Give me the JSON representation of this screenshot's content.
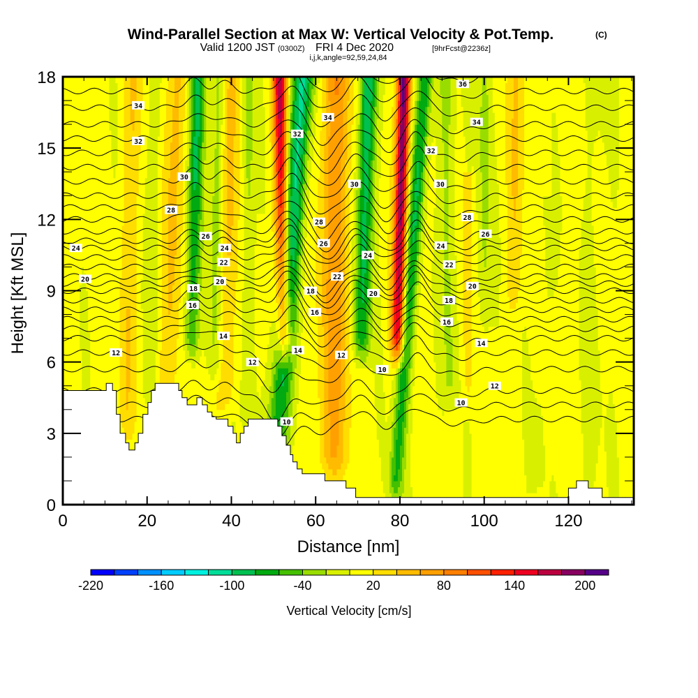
{
  "chart_data": {
    "type": "heatmap",
    "title": "Wind-Parallel Section at Max W: Vertical Velocity & Pot.Temp.",
    "title_mark": "(C)",
    "subtitle_main": "Valid 1200 JST",
    "subtitle_utc": "(0300Z)",
    "subtitle_date": "FRI 4 Dec 2020",
    "subtitle_fcst": "[9hrFcst@2236z]",
    "subtitle_index": "i,j,k,angle=92,59,24,84",
    "xlabel": "Distance [nm]",
    "ylabel": "Height [Kft MSL]",
    "xlim": [
      0,
      135.5
    ],
    "ylim": [
      0,
      18
    ],
    "x_ticks": [
      0,
      20,
      40,
      60,
      80,
      100,
      120
    ],
    "x_tick_labels": [
      "0",
      "20",
      "40",
      "60",
      "80",
      "100",
      "120"
    ],
    "x_minor_step": 5,
    "y_ticks": [
      0,
      3,
      6,
      9,
      12,
      15,
      18
    ],
    "y_tick_labels": [
      "0",
      "3",
      "6",
      "9",
      "12",
      "15",
      "18"
    ],
    "y_minor_step": 1,
    "colorbar": {
      "label": "Vertical Velocity [cm/s]",
      "boundaries": [
        -220,
        -200,
        -180,
        -160,
        -140,
        -120,
        -100,
        -80,
        -60,
        -40,
        -20,
        0,
        20,
        40,
        60,
        80,
        100,
        120,
        140,
        160,
        180,
        200,
        220
      ],
      "colors": [
        "#0000ff",
        "#0040ff",
        "#0090ff",
        "#00ccff",
        "#00f0e0",
        "#00dd99",
        "#00c050",
        "#00aa10",
        "#44c000",
        "#99dd00",
        "#d8f000",
        "#ffff00",
        "#ffdd00",
        "#ffbb00",
        "#ffa000",
        "#ff8000",
        "#ff5000",
        "#ff2000",
        "#ee0020",
        "#bb0040",
        "#880060",
        "#550088"
      ],
      "tick_values": [
        -220,
        -160,
        -100,
        -40,
        20,
        80,
        140,
        200
      ],
      "tick_labels": [
        "-220",
        "-160",
        "-100",
        "-40",
        "20",
        "80",
        "140",
        "200"
      ]
    },
    "velocity_features": [
      {
        "name": "updraft-1",
        "x_top": 17,
        "x_bottom": 15,
        "z_top": 18,
        "z_bottom": 4,
        "width": 2.2,
        "w_cm_s": 30
      },
      {
        "name": "downdraft-1",
        "x_top": 22,
        "x_bottom": 21,
        "z_top": 18,
        "z_bottom": 5,
        "width": 1.6,
        "w_cm_s": -30
      },
      {
        "name": "updraft-2",
        "x_top": 27,
        "x_bottom": 25,
        "z_top": 18,
        "z_bottom": 5,
        "width": 2.2,
        "w_cm_s": 45
      },
      {
        "name": "downdraft-2",
        "x_top": 32,
        "x_bottom": 30.5,
        "z_top": 18,
        "z_bottom": 7,
        "width": 1.8,
        "w_cm_s": -95
      },
      {
        "name": "downdraft-3",
        "x_top": 37,
        "x_bottom": 36,
        "z_top": 18,
        "z_bottom": 6,
        "width": 1.6,
        "w_cm_s": -45
      },
      {
        "name": "updraft-3",
        "x_top": 40,
        "x_bottom": 39,
        "z_top": 18,
        "z_bottom": 5,
        "width": 2.0,
        "w_cm_s": 45
      },
      {
        "name": "downdraft-4",
        "x_top": 44,
        "x_bottom": 44,
        "z_top": 18,
        "z_bottom": 4,
        "width": 1.5,
        "w_cm_s": -40
      },
      {
        "name": "updraft-4",
        "x_top": 51.5,
        "x_bottom": 52.5,
        "z_top": 18,
        "z_bottom": 7,
        "width": 1.6,
        "w_cm_s": 165
      },
      {
        "name": "downdraft-5",
        "x_top": 57,
        "x_bottom": 51,
        "z_top": 18,
        "z_bottom": 3,
        "width": 2.6,
        "w_cm_s": -120
      },
      {
        "name": "updraft-5",
        "x_top": 65,
        "x_bottom": 64,
        "z_top": 18,
        "z_bottom": 2,
        "width": 3.5,
        "w_cm_s": 70
      },
      {
        "name": "downdraft-6",
        "x_top": 72.5,
        "x_bottom": 71,
        "z_top": 18,
        "z_bottom": 7,
        "width": 2.0,
        "w_cm_s": -115
      },
      {
        "name": "updraft-6",
        "x_top": 81,
        "x_bottom": 79.5,
        "z_top": 18,
        "z_bottom": 7,
        "width": 1.5,
        "w_cm_s": 205
      },
      {
        "name": "downdraft-7",
        "x_top": 86,
        "x_bottom": 79,
        "z_top": 18,
        "z_bottom": 1,
        "width": 1.8,
        "w_cm_s": -95
      },
      {
        "name": "downdraft-8",
        "x_top": 91,
        "x_bottom": 92,
        "z_top": 18,
        "z_bottom": 5,
        "width": 2.0,
        "w_cm_s": -40
      },
      {
        "name": "downdraft-9",
        "x_top": 100,
        "x_bottom": 100,
        "z_top": 18,
        "z_bottom": 8,
        "width": 1.6,
        "w_cm_s": -40
      },
      {
        "name": "updraft-7",
        "x_top": 96,
        "x_bottom": 96,
        "z_top": 13,
        "z_bottom": 5,
        "width": 1.3,
        "w_cm_s": 30
      },
      {
        "name": "updraft-8",
        "x_top": 108,
        "x_bottom": 107,
        "z_top": 18,
        "z_bottom": 9,
        "width": 2.0,
        "w_cm_s": 30
      },
      {
        "name": "downdraft-10",
        "x_top": 127,
        "x_bottom": 126,
        "z_top": 18,
        "z_bottom": 1,
        "width": 3.0,
        "w_cm_s": -15
      },
      {
        "name": "downdraft-11",
        "x_top": 115,
        "x_bottom": 113,
        "z_top": 12,
        "z_bottom": 1,
        "width": 2.0,
        "w_cm_s": -15
      }
    ],
    "isentrope_levels_K": [
      8,
      9,
      10,
      11,
      12,
      13,
      14,
      15,
      16,
      17,
      18,
      19,
      20,
      21,
      22,
      23,
      24,
      25,
      26,
      27,
      28,
      29,
      30,
      31,
      32,
      33,
      34,
      35,
      36
    ],
    "isentrope_base_height_kft": [
      3.6,
      4.2,
      4.8,
      5.7,
      6.4,
      7.0,
      7.4,
      7.8,
      8.2,
      8.6,
      9.0,
      9.3,
      9.6,
      10.0,
      10.4,
      10.8,
      11.1,
      11.5,
      12.0,
      12.5,
      13.0,
      13.6,
      14.2,
      14.8,
      15.4,
      16.0,
      16.7,
      17.4,
      18.1
    ],
    "isentrope_displacements": [
      {
        "x": 31,
        "width": 3,
        "dz_kft": 0.45
      },
      {
        "x": 38,
        "width": 3,
        "dz_kft": 0.35
      },
      {
        "x": 54,
        "width": 3.5,
        "dz_kft": 0.9
      },
      {
        "x": 62,
        "width": 4,
        "dz_kft": -0.8
      },
      {
        "x": 70,
        "width": 3,
        "dz_kft": 0.5
      },
      {
        "x": 77,
        "width": 3,
        "dz_kft": -0.5
      },
      {
        "x": 84,
        "width": 3,
        "dz_kft": 0.8
      },
      {
        "x": 94,
        "width": 5,
        "dz_kft": -0.3
      },
      {
        "x": 52,
        "width": 5,
        "dz_kft": -1.6,
        "z_max": 9
      }
    ],
    "contour_labels": [
      {
        "x": 17.9,
        "z": 16.8,
        "text": "34"
      },
      {
        "x": 17.9,
        "z": 15.3,
        "text": "32"
      },
      {
        "x": 28.8,
        "z": 13.8,
        "text": "30"
      },
      {
        "x": 25.7,
        "z": 12.4,
        "text": "28"
      },
      {
        "x": 33.9,
        "z": 11.3,
        "text": "26"
      },
      {
        "x": 3.1,
        "z": 10.8,
        "text": "24"
      },
      {
        "x": 38.4,
        "z": 10.8,
        "text": "24"
      },
      {
        "x": 38.2,
        "z": 10.2,
        "text": "22"
      },
      {
        "x": 5.3,
        "z": 9.5,
        "text": "20"
      },
      {
        "x": 37.3,
        "z": 9.4,
        "text": "20"
      },
      {
        "x": 31.0,
        "z": 9.1,
        "text": "18"
      },
      {
        "x": 30.8,
        "z": 8.4,
        "text": "16"
      },
      {
        "x": 38.1,
        "z": 7.1,
        "text": "14"
      },
      {
        "x": 12.6,
        "z": 6.4,
        "text": "12"
      },
      {
        "x": 45.0,
        "z": 6.0,
        "text": "12"
      },
      {
        "x": 55.8,
        "z": 6.5,
        "text": "14"
      },
      {
        "x": 53.1,
        "z": 3.5,
        "text": "10"
      },
      {
        "x": 55.6,
        "z": 15.6,
        "text": "32"
      },
      {
        "x": 62.9,
        "z": 16.3,
        "text": "34"
      },
      {
        "x": 87.4,
        "z": 14.9,
        "text": "32"
      },
      {
        "x": 98.2,
        "z": 16.1,
        "text": "34"
      },
      {
        "x": 94.9,
        "z": 17.7,
        "text": "36"
      },
      {
        "x": 69.2,
        "z": 13.5,
        "text": "30"
      },
      {
        "x": 89.6,
        "z": 13.5,
        "text": "30"
      },
      {
        "x": 60.8,
        "z": 11.9,
        "text": "28"
      },
      {
        "x": 96.0,
        "z": 12.1,
        "text": "28"
      },
      {
        "x": 61.9,
        "z": 11.0,
        "text": "26"
      },
      {
        "x": 100.3,
        "z": 11.4,
        "text": "26"
      },
      {
        "x": 72.4,
        "z": 10.5,
        "text": "24"
      },
      {
        "x": 89.7,
        "z": 10.9,
        "text": "24"
      },
      {
        "x": 65.1,
        "z": 9.6,
        "text": "22"
      },
      {
        "x": 91.7,
        "z": 10.1,
        "text": "22"
      },
      {
        "x": 73.7,
        "z": 8.9,
        "text": "20"
      },
      {
        "x": 97.2,
        "z": 9.2,
        "text": "20"
      },
      {
        "x": 58.8,
        "z": 9.0,
        "text": "18"
      },
      {
        "x": 91.6,
        "z": 8.6,
        "text": "18"
      },
      {
        "x": 59.8,
        "z": 8.1,
        "text": "16"
      },
      {
        "x": 91.1,
        "z": 7.7,
        "text": "16"
      },
      {
        "x": 99.3,
        "z": 6.8,
        "text": "14"
      },
      {
        "x": 66.1,
        "z": 6.3,
        "text": "12"
      },
      {
        "x": 102.5,
        "z": 5.0,
        "text": "12"
      },
      {
        "x": 75.8,
        "z": 5.7,
        "text": "10"
      },
      {
        "x": 94.5,
        "z": 4.3,
        "text": "10"
      }
    ],
    "terrain_kft": [
      [
        0,
        4.8
      ],
      [
        10.3,
        5.1
      ],
      [
        11.8,
        4.8
      ],
      [
        12.7,
        3.8
      ],
      [
        13.6,
        3.0
      ],
      [
        14.9,
        2.6
      ],
      [
        15.7,
        2.3
      ],
      [
        17.1,
        2.6
      ],
      [
        17.9,
        3.0
      ],
      [
        19.0,
        3.8
      ],
      [
        20.2,
        4.3
      ],
      [
        21.0,
        4.8
      ],
      [
        21.9,
        5.1
      ],
      [
        27.5,
        4.8
      ],
      [
        28.3,
        4.5
      ],
      [
        29.5,
        4.2
      ],
      [
        31.8,
        4.5
      ],
      [
        33.1,
        4.2
      ],
      [
        34.3,
        3.9
      ],
      [
        35.4,
        3.7
      ],
      [
        36.4,
        3.6
      ],
      [
        39.2,
        3.3
      ],
      [
        40.4,
        3.0
      ],
      [
        41.2,
        2.6
      ],
      [
        42.1,
        3.0
      ],
      [
        43.0,
        3.3
      ],
      [
        44.0,
        3.6
      ],
      [
        51.0,
        3.3
      ],
      [
        52.0,
        2.9
      ],
      [
        53.0,
        2.5
      ],
      [
        54.0,
        2.1
      ],
      [
        54.6,
        1.8
      ],
      [
        55.6,
        1.5
      ],
      [
        56.8,
        1.3
      ],
      [
        62.2,
        1.0
      ],
      [
        67.2,
        0.7
      ],
      [
        69.5,
        0.3
      ],
      [
        120.0,
        0.7
      ],
      [
        121.9,
        1.0
      ],
      [
        124.7,
        0.7
      ],
      [
        128.0,
        0.3
      ],
      [
        135.5,
        0.3
      ]
    ]
  }
}
